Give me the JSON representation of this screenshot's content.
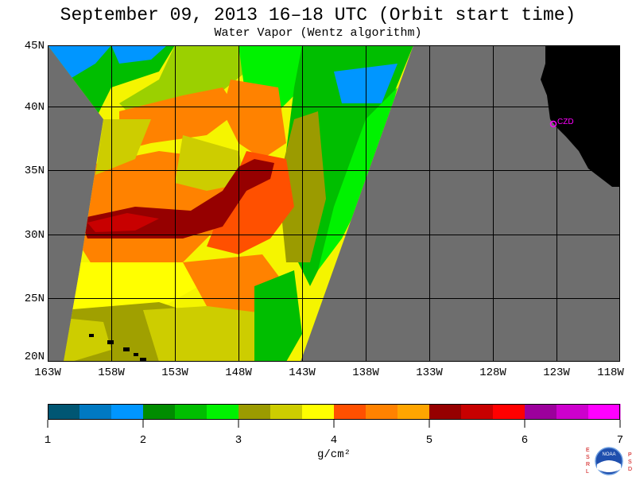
{
  "title": "September 09, 2013  16–18 UTC  (Orbit start time)",
  "subtitle": "Water Vapor (Wentz algorithm)",
  "map": {
    "lat_labels": [
      "45N",
      "40N",
      "35N",
      "30N",
      "25N",
      "20N"
    ],
    "lon_labels": [
      "163W",
      "158W",
      "153W",
      "148W",
      "143W",
      "138W",
      "133W",
      "128W",
      "123W",
      "118W"
    ],
    "station_label": "CZD",
    "colors": {
      "no_data": "#6e6e6e",
      "land": "#000000",
      "grid": "#000000",
      "station": "#ff00ff"
    }
  },
  "colorbar": {
    "tick_labels": [
      "1",
      "2",
      "3",
      "4",
      "5",
      "6",
      "7"
    ],
    "units": "g/cm²",
    "colors": [
      "#005673",
      "#0079c2",
      "#0096ff",
      "#008c00",
      "#00be00",
      "#00f200",
      "#9b9b00",
      "#cdcd00",
      "#ffff00",
      "#ff5000",
      "#ff8200",
      "#ffa500",
      "#960000",
      "#c80000",
      "#ff0000",
      "#9c009c",
      "#cd00cd",
      "#ff00ff"
    ]
  },
  "logo": {
    "org": "NOAA",
    "left_letters": "ESRL",
    "right_letters": "PSD"
  }
}
